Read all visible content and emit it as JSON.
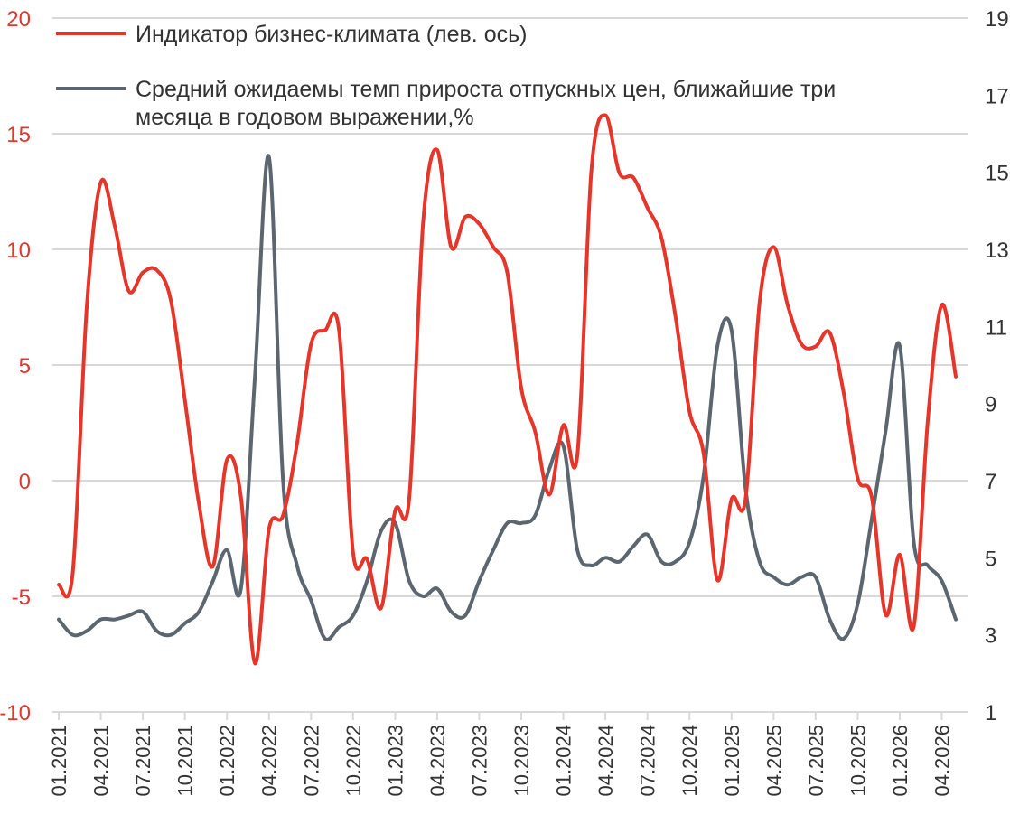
{
  "chart_data": {
    "type": "line",
    "x_ticks": [
      "01.2021",
      "04.2021",
      "07.2021",
      "10.2021",
      "01.2022",
      "04.2022",
      "07.2022",
      "10.2022",
      "01.2023",
      "04.2023",
      "07.2023",
      "10.2023",
      "01.2024",
      "04.2024",
      "07.2024",
      "10.2024",
      "01.2025",
      "04.2025",
      "07.2025",
      "10.2025",
      "01.2026",
      "04.2026"
    ],
    "y_left": {
      "ticks": [
        20,
        15,
        10,
        5,
        0,
        -5,
        -10
      ],
      "ylim": [
        -10,
        20
      ]
    },
    "y_right": {
      "ticks": [
        19,
        17,
        15,
        13,
        11,
        9,
        7,
        5,
        3,
        1
      ],
      "ylim": [
        1,
        19
      ]
    },
    "legend_placement": "top-left",
    "grid": "horizontal",
    "series": [
      {
        "name": "Индикатор бизнес-климата (лев. ось)",
        "color": "#e8352a",
        "axis": "left",
        "x": [
          "01.2021",
          "02.2021",
          "03.2021",
          "04.2021",
          "05.2021",
          "06.2021",
          "07.2021",
          "08.2021",
          "09.2021",
          "10.2021",
          "11.2021",
          "12.2021",
          "01.2022",
          "02.2022",
          "03.2022",
          "04.2022",
          "05.2022",
          "06.2022",
          "07.2022",
          "08.2022",
          "09.2022",
          "10.2022",
          "11.2022",
          "12.2022",
          "01.2023",
          "02.2023",
          "03.2023",
          "04.2023",
          "05.2023",
          "06.2023",
          "07.2023",
          "08.2023",
          "09.2023",
          "10.2023",
          "11.2023",
          "12.2023",
          "01.2024",
          "02.2024",
          "03.2024",
          "04.2024",
          "05.2024",
          "06.2024",
          "07.2024",
          "08.2024",
          "09.2024",
          "10.2024",
          "11.2024",
          "12.2024",
          "01.2025",
          "02.2025",
          "03.2025",
          "04.2025",
          "05.2025",
          "06.2025",
          "07.2025",
          "08.2025",
          "09.2025",
          "10.2025",
          "11.2025",
          "12.2025",
          "01.2026",
          "02.2026",
          "03.2026",
          "04.2026",
          "05.2026"
        ],
        "values": [
          -4.5,
          -4,
          7.5,
          12.9,
          11,
          8.2,
          9,
          9.1,
          7.8,
          3.5,
          -1,
          -3.7,
          0.9,
          -0.7,
          -7.9,
          -2.1,
          -1.5,
          1.6,
          5.9,
          6.5,
          6.5,
          -3.1,
          -3.4,
          -5.5,
          -1.3,
          -0.8,
          11.2,
          14.3,
          10.1,
          11.4,
          11.1,
          10.1,
          9,
          4,
          2.1,
          -0.6,
          2.4,
          1.1,
          13.4,
          15.8,
          13.3,
          13.1,
          11.8,
          10.5,
          7.1,
          3,
          1.2,
          -4.3,
          -0.8,
          -0.8,
          7.7,
          10.1,
          7.6,
          5.9,
          5.8,
          6.4,
          3.8,
          0.1,
          -0.7,
          -5.8,
          -3.2,
          -6.3,
          2.6,
          7.6,
          4.5
        ]
      },
      {
        "name": "Средний ожидаемы темп прироста отпускных цен, ближайшие три месяца в годовом выражении,%",
        "color": "#5b6670",
        "axis": "right",
        "x": [
          "01.2021",
          "02.2021",
          "03.2021",
          "04.2021",
          "05.2021",
          "06.2021",
          "07.2021",
          "08.2021",
          "09.2021",
          "10.2021",
          "11.2021",
          "12.2021",
          "01.2022",
          "02.2022",
          "03.2022",
          "04.2022",
          "05.2022",
          "06.2022",
          "07.2022",
          "08.2022",
          "09.2022",
          "10.2022",
          "11.2022",
          "12.2022",
          "01.2023",
          "02.2023",
          "03.2023",
          "04.2023",
          "05.2023",
          "06.2023",
          "07.2023",
          "08.2023",
          "09.2023",
          "10.2023",
          "11.2023",
          "12.2023",
          "01.2024",
          "02.2024",
          "03.2024",
          "04.2024",
          "05.2024",
          "06.2024",
          "07.2024",
          "08.2024",
          "09.2024",
          "10.2024",
          "11.2024",
          "12.2024",
          "01.2025",
          "02.2025",
          "03.2025",
          "04.2025",
          "05.2025",
          "06.2025",
          "07.2025",
          "08.2025",
          "09.2025",
          "10.2025",
          "11.2025",
          "12.2025",
          "01.2026",
          "02.2026",
          "03.2026",
          "04.2026",
          "05.2026"
        ],
        "values": [
          3.4,
          3,
          3.1,
          3.4,
          3.4,
          3.5,
          3.6,
          3.1,
          3,
          3.3,
          3.6,
          4.4,
          5.2,
          4.2,
          9.7,
          15.4,
          7,
          4.8,
          3.9,
          2.9,
          3.2,
          3.5,
          4.4,
          5.7,
          5.9,
          4.4,
          4,
          4.2,
          3.6,
          3.5,
          4.4,
          5.2,
          5.9,
          5.9,
          6.1,
          7.3,
          7.9,
          5.2,
          4.8,
          5,
          4.9,
          5.3,
          5.6,
          4.9,
          4.9,
          5.4,
          7.1,
          10.5,
          10.9,
          6.8,
          4.9,
          4.5,
          4.3,
          4.5,
          4.5,
          3.4,
          2.9,
          3.8,
          6,
          8.3,
          10.5,
          5.4,
          4.8,
          4.4,
          3.4
        ]
      }
    ]
  }
}
